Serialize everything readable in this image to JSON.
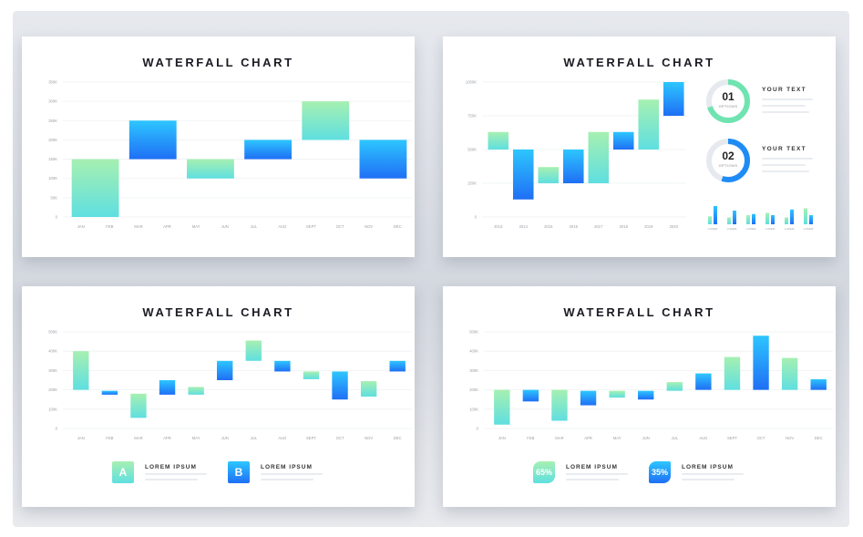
{
  "colors": {
    "inc_top": "#a6f0b1",
    "inc_bot": "#5fdfe0",
    "dec_top": "#2dc6ff",
    "dec_bot": "#1f6ff5"
  },
  "chart_data": [
    {
      "type": "bar",
      "subtype": "waterfall",
      "title": "WATERFALL CHART",
      "categories": [
        "JAN",
        "FEB",
        "MAR",
        "APR",
        "MAY",
        "JUN",
        "JUL",
        "AUG",
        "SEPT",
        "OCT",
        "NOV",
        "DEC"
      ],
      "yticks": [
        "0",
        "50K",
        "100K",
        "150K",
        "200K",
        "250K",
        "300K",
        "350K"
      ],
      "ylim": [
        0,
        350
      ],
      "bars": [
        {
          "lo": 0,
          "hi": 150,
          "t": "inc"
        },
        {
          "lo": 150,
          "hi": 250,
          "t": "dec"
        },
        {
          "lo": 100,
          "hi": 150,
          "t": "inc"
        },
        {
          "lo": 150,
          "hi": 200,
          "t": "dec"
        },
        {
          "lo": 200,
          "hi": 300,
          "t": "inc"
        },
        {
          "lo": 100,
          "hi": 200,
          "t": "dec"
        }
      ]
    },
    {
      "type": "bar",
      "subtype": "waterfall",
      "title": "WATERFALL CHART",
      "categories": [
        "2013",
        "2014",
        "2015",
        "2016",
        "2017",
        "2018",
        "2019",
        "2020"
      ],
      "yticks": [
        "0",
        "250K",
        "500K",
        "750K",
        "1000K"
      ],
      "ylim": [
        0,
        1000
      ],
      "bars": [
        {
          "lo": 500,
          "hi": 630,
          "t": "inc"
        },
        {
          "lo": 130,
          "hi": 500,
          "t": "dec"
        },
        {
          "lo": 250,
          "hi": 370,
          "t": "inc"
        },
        {
          "lo": 250,
          "hi": 500,
          "t": "dec"
        },
        {
          "lo": 250,
          "hi": 630,
          "t": "inc"
        },
        {
          "lo": 500,
          "hi": 630,
          "t": "dec"
        },
        {
          "lo": 500,
          "hi": 870,
          "t": "inc"
        },
        {
          "lo": 750,
          "hi": 1000,
          "t": "dec"
        }
      ],
      "mini": {
        "labels": [
          "LOREM",
          "LOREM",
          "LOREM",
          "LOREM",
          "LOREM",
          "LOREM"
        ],
        "bars": [
          [
            35,
            80
          ],
          [
            30,
            60
          ],
          [
            40,
            45
          ],
          [
            50,
            40
          ],
          [
            30,
            65
          ],
          [
            70,
            40
          ]
        ]
      },
      "side": [
        {
          "num": "01",
          "sub": "OPTIONS",
          "text": "YOUR TEXT",
          "pct": 0.7
        },
        {
          "num": "02",
          "sub": "OPTIONS",
          "text": "YOUR TEXT",
          "pct": 0.55
        }
      ]
    },
    {
      "type": "bar",
      "subtype": "waterfall",
      "title": "WATERFALL CHART",
      "categories": [
        "JAN",
        "FEB",
        "MAR",
        "APR",
        "MAY",
        "JUN",
        "JUL",
        "AUG",
        "SEPT",
        "OCT",
        "NOV",
        "DEC"
      ],
      "yticks": [
        "0",
        "100K",
        "200K",
        "300K",
        "400K",
        "500K"
      ],
      "ylim": [
        0,
        500
      ],
      "bars": [
        {
          "lo": 200,
          "hi": 400,
          "t": "inc"
        },
        {
          "lo": 175,
          "hi": 195,
          "t": "dec"
        },
        {
          "lo": 55,
          "hi": 180,
          "t": "inc"
        },
        {
          "lo": 175,
          "hi": 250,
          "t": "dec"
        },
        {
          "lo": 175,
          "hi": 215,
          "t": "inc"
        },
        {
          "lo": 250,
          "hi": 350,
          "t": "dec"
        },
        {
          "lo": 350,
          "hi": 455,
          "t": "inc"
        },
        {
          "lo": 295,
          "hi": 350,
          "t": "dec"
        },
        {
          "lo": 255,
          "hi": 295,
          "t": "inc"
        },
        {
          "lo": 150,
          "hi": 295,
          "t": "dec"
        },
        {
          "lo": 165,
          "hi": 245,
          "t": "inc"
        },
        {
          "lo": 295,
          "hi": 350,
          "t": "dec"
        }
      ],
      "legend": [
        {
          "label": "A",
          "text": "LOREM IPSUM",
          "t": "inc"
        },
        {
          "label": "B",
          "text": "LOREM IPSUM",
          "t": "dec"
        }
      ]
    },
    {
      "type": "bar",
      "subtype": "waterfall",
      "title": "WATERFALL CHART",
      "categories": [
        "JAN",
        "FEB",
        "MAR",
        "APR",
        "MAY",
        "JUN",
        "JUL",
        "AUG",
        "SEPT",
        "OCT",
        "NOV",
        "DEC"
      ],
      "yticks": [
        "0",
        "100K",
        "200K",
        "300K",
        "400K",
        "500K"
      ],
      "ylim": [
        0,
        500
      ],
      "bars": [
        {
          "lo": 20,
          "hi": 200,
          "t": "inc"
        },
        {
          "lo": 140,
          "hi": 200,
          "t": "dec"
        },
        {
          "lo": 40,
          "hi": 200,
          "t": "inc"
        },
        {
          "lo": 120,
          "hi": 195,
          "t": "dec"
        },
        {
          "lo": 160,
          "hi": 195,
          "t": "inc"
        },
        {
          "lo": 150,
          "hi": 195,
          "t": "dec"
        },
        {
          "lo": 195,
          "hi": 240,
          "t": "inc"
        },
        {
          "lo": 200,
          "hi": 285,
          "t": "dec"
        },
        {
          "lo": 200,
          "hi": 370,
          "t": "inc"
        },
        {
          "lo": 200,
          "hi": 480,
          "t": "dec"
        },
        {
          "lo": 200,
          "hi": 365,
          "t": "inc"
        },
        {
          "lo": 200,
          "hi": 255,
          "t": "dec"
        }
      ],
      "legend": [
        {
          "label": "65%",
          "text": "LOREM IPSUM",
          "t": "inc"
        },
        {
          "label": "35%",
          "text": "LOREM IPSUM",
          "t": "dec"
        }
      ]
    }
  ]
}
